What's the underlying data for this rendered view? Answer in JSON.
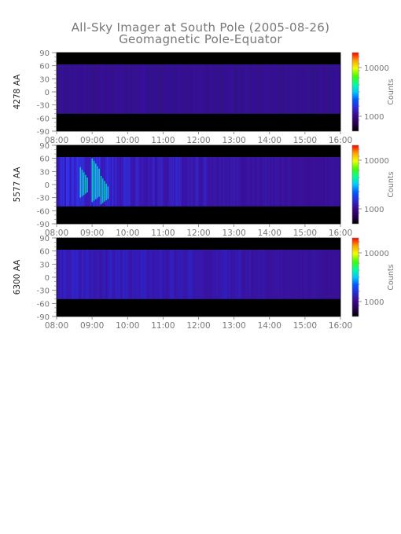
{
  "title": "All-Sky Imager at South Pole (2005-08-26)",
  "subtitle": "Geomagnetic Pole-Equator",
  "colors": {
    "background_band": "#000000",
    "base_fill": "#3a0d8c",
    "axis_text": "#777777",
    "colorbar_stops": [
      "#000000",
      "#2a0055",
      "#3b0a8c",
      "#2a2ad6",
      "#0058ff",
      "#00c8ff",
      "#00ff9a",
      "#40ff00",
      "#f0ff00",
      "#ffa000",
      "#ff0000"
    ]
  },
  "chart_data": [
    {
      "type": "heatmap",
      "ylabel": "4278 AA",
      "x_ticks": [
        "08:00",
        "09:00",
        "10:00",
        "11:00",
        "12:00",
        "13:00",
        "14:00",
        "15:00",
        "16:00"
      ],
      "y_ticks": [
        "90",
        "60",
        "30",
        "0",
        "-30",
        "-60",
        "-90"
      ],
      "ylim": [
        -90,
        90
      ],
      "data_range_y": [
        -50,
        63
      ],
      "colorbar": {
        "label": "Counts",
        "ticks": [
          "10000",
          "1000"
        ],
        "scale": "log"
      },
      "intensity": "low",
      "bright_regions": []
    },
    {
      "type": "heatmap",
      "ylabel": "5577 AA",
      "x_ticks": [
        "08:00",
        "09:00",
        "10:00",
        "11:00",
        "12:00",
        "13:00",
        "14:00",
        "15:00",
        "16:00"
      ],
      "y_ticks": [
        "90",
        "60",
        "30",
        "0",
        "-30",
        "-60",
        "-90"
      ],
      "ylim": [
        -90,
        90
      ],
      "data_range_y": [
        -50,
        63
      ],
      "colorbar": {
        "label": "Counts",
        "ticks": [
          "10000",
          "1000"
        ],
        "scale": "log"
      },
      "intensity": "high",
      "bright_regions": [
        {
          "time": "08:45",
          "y_from": -30,
          "y_to": 40
        },
        {
          "time": "09:05",
          "y_from": -40,
          "y_to": 60
        },
        {
          "time": "09:20",
          "y_from": -45,
          "y_to": 20
        }
      ]
    },
    {
      "type": "heatmap",
      "ylabel": "6300 AA",
      "x_ticks": [
        "08:00",
        "09:00",
        "10:00",
        "11:00",
        "12:00",
        "13:00",
        "14:00",
        "15:00",
        "16:00"
      ],
      "y_ticks": [
        "90",
        "60",
        "30",
        "0",
        "-30",
        "-60",
        "-90"
      ],
      "ylim": [
        -90,
        90
      ],
      "data_range_y": [
        -50,
        63
      ],
      "colorbar": {
        "label": "Counts",
        "ticks": [
          "10000",
          "1000"
        ],
        "scale": "log"
      },
      "intensity": "medium",
      "bright_regions": []
    }
  ]
}
